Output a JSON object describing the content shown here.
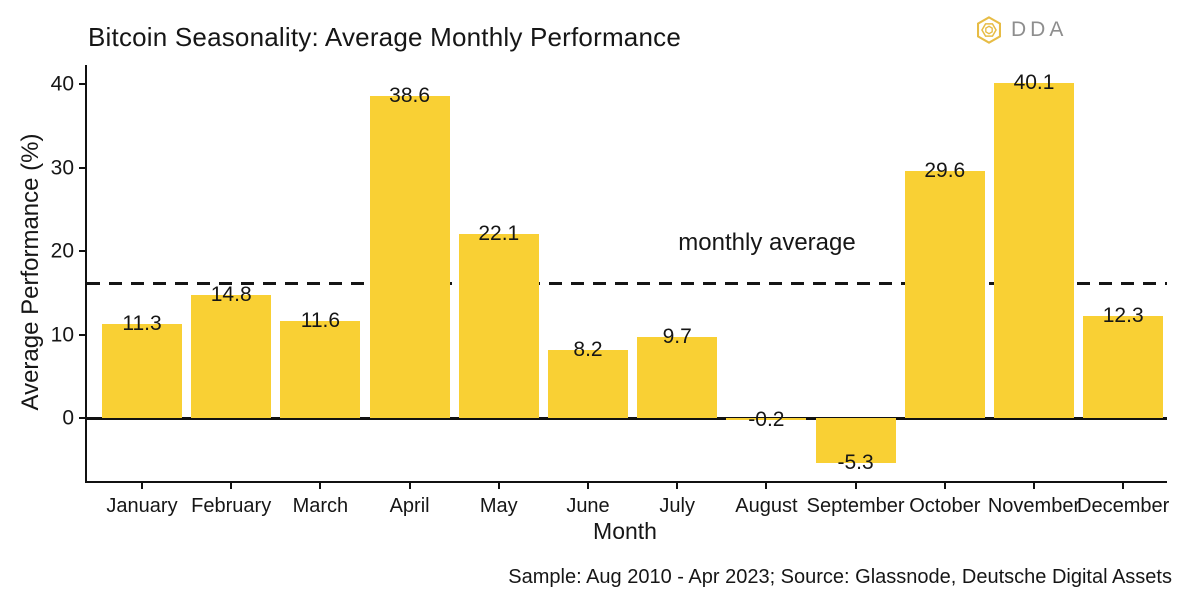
{
  "title": "Bitcoin Seasonality: Average Monthly Performance",
  "logo": {
    "text": "DDA",
    "icon": "hexagon-knot-icon",
    "icon_color": "#E7BC45",
    "text_color": "#8E8E8E"
  },
  "caption": "Sample: Aug 2010 - Apr 2023; Source: Glassnode, Deutsche Digital Assets",
  "chart_data": {
    "type": "bar",
    "title": "Bitcoin Seasonality: Average Monthly Performance",
    "xlabel": "Month",
    "ylabel": "Average Performance (%)",
    "categories": [
      "January",
      "February",
      "March",
      "April",
      "May",
      "June",
      "July",
      "August",
      "September",
      "October",
      "November",
      "December"
    ],
    "values": [
      11.3,
      14.8,
      11.6,
      38.6,
      22.1,
      8.2,
      9.7,
      -0.2,
      -5.3,
      29.6,
      40.1,
      12.3
    ],
    "bar_labels": [
      "11.3",
      "14.8",
      "11.6",
      "38.6",
      "22.1",
      "8.2",
      "9.7",
      "-0.2",
      "-5.3",
      "29.6",
      "40.1",
      "12.3"
    ],
    "yticks": [
      0,
      10,
      20,
      30,
      40
    ],
    "ylim": [
      -7.5,
      42.3
    ],
    "grid": false,
    "legend": false,
    "bar_color": "#F9D034",
    "axis_color": "#111111",
    "average_line": {
      "value": 16.1,
      "label": "monthly average",
      "style": "dashed"
    }
  }
}
